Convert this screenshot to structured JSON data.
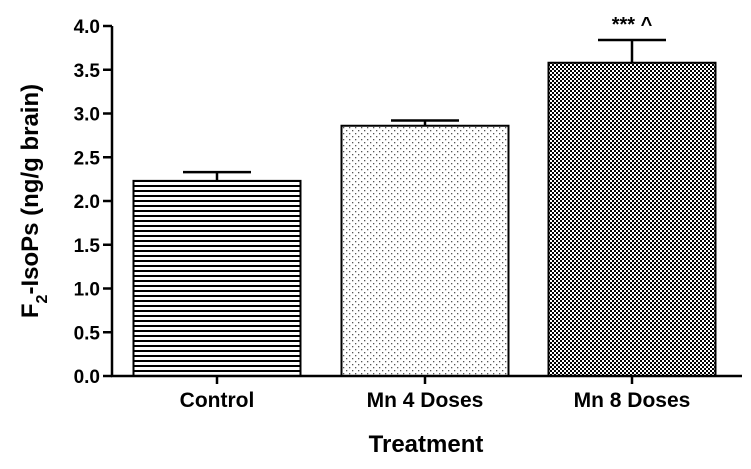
{
  "chart_data": {
    "type": "bar",
    "categories": [
      "Control",
      "Mn 4 Doses",
      "Mn 8 Doses"
    ],
    "values": [
      2.23,
      2.86,
      3.58
    ],
    "errors": [
      0.1,
      0.06,
      0.26
    ],
    "patterns": [
      "horizontal-lines",
      "dots",
      "checkerboard"
    ],
    "annotations": [
      "",
      "",
      "*** ^"
    ],
    "xlabel": "Treatment",
    "ylabel_main": "F",
    "ylabel_sub": "2",
    "ylabel_rest": "-IsoPs (ng/g brain)",
    "ylim": [
      0,
      4.0
    ],
    "yticks": [
      "0.0",
      "0.5",
      "1.0",
      "1.5",
      "2.0",
      "2.5",
      "3.0",
      "3.5",
      "4.0"
    ],
    "grid": false,
    "legend": "none"
  }
}
